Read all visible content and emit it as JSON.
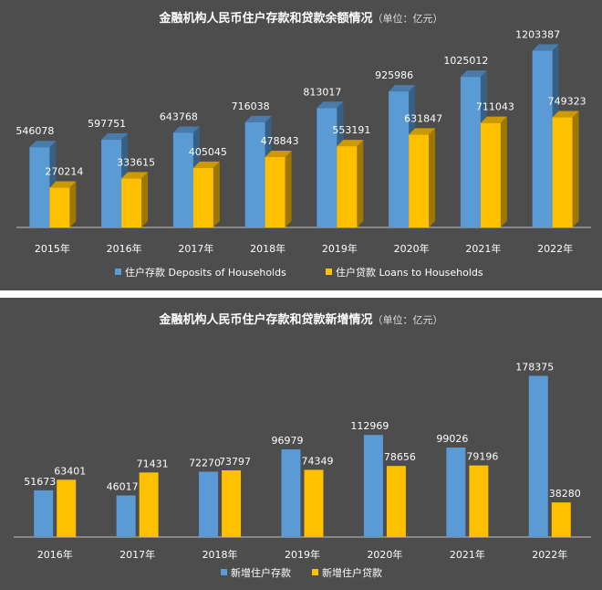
{
  "chart_data": [
    {
      "type": "bar",
      "title": "金融机构人民币住户存款和贷款余额情况",
      "unit_note": "（单位：亿元）",
      "categories": [
        "2015年",
        "2016年",
        "2017年",
        "2018年",
        "2019年",
        "2020年",
        "2021年",
        "2022年"
      ],
      "series": [
        {
          "name": "住户存款 Deposits of Households",
          "values": [
            546078,
            597751,
            643768,
            716038,
            813017,
            925986,
            1025012,
            1203387
          ],
          "color": "#5b9bd5"
        },
        {
          "name": "住户贷款 Loans to Households",
          "values": [
            270214,
            333615,
            405045,
            478843,
            553191,
            631847,
            711043,
            749323
          ],
          "color": "#ffc000"
        }
      ],
      "ylim": [
        0,
        1300000
      ],
      "style": "3d-column",
      "legend": "bottom",
      "grid": false
    },
    {
      "type": "bar",
      "title": "金融机构人民币住户存款和贷款新增情况",
      "unit_note": "（单位：亿元）",
      "categories": [
        "2016年",
        "2017年",
        "2018年",
        "2019年",
        "2020年",
        "2021年",
        "2022年"
      ],
      "series": [
        {
          "name": "新增住户存款",
          "values": [
            51673,
            46017,
            72270,
            96979,
            112969,
            99026,
            178375
          ],
          "labels": [
            "51673",
            "46017",
            "72270",
            "96979",
            "112969",
            "99026",
            "178375"
          ],
          "color": "#5b9bd5"
        },
        {
          "name": "新增住户贷款",
          "values": [
            63401,
            71431,
            73797,
            74349,
            78656,
            79196,
            38280
          ],
          "labels": [
            "63401",
            "71431",
            "73797",
            "74349",
            "78656",
            "79196",
            "38280"
          ],
          "color": "#ffc000"
        }
      ],
      "ylim": [
        0,
        190000
      ],
      "legend": "bottom",
      "grid": false
    }
  ]
}
